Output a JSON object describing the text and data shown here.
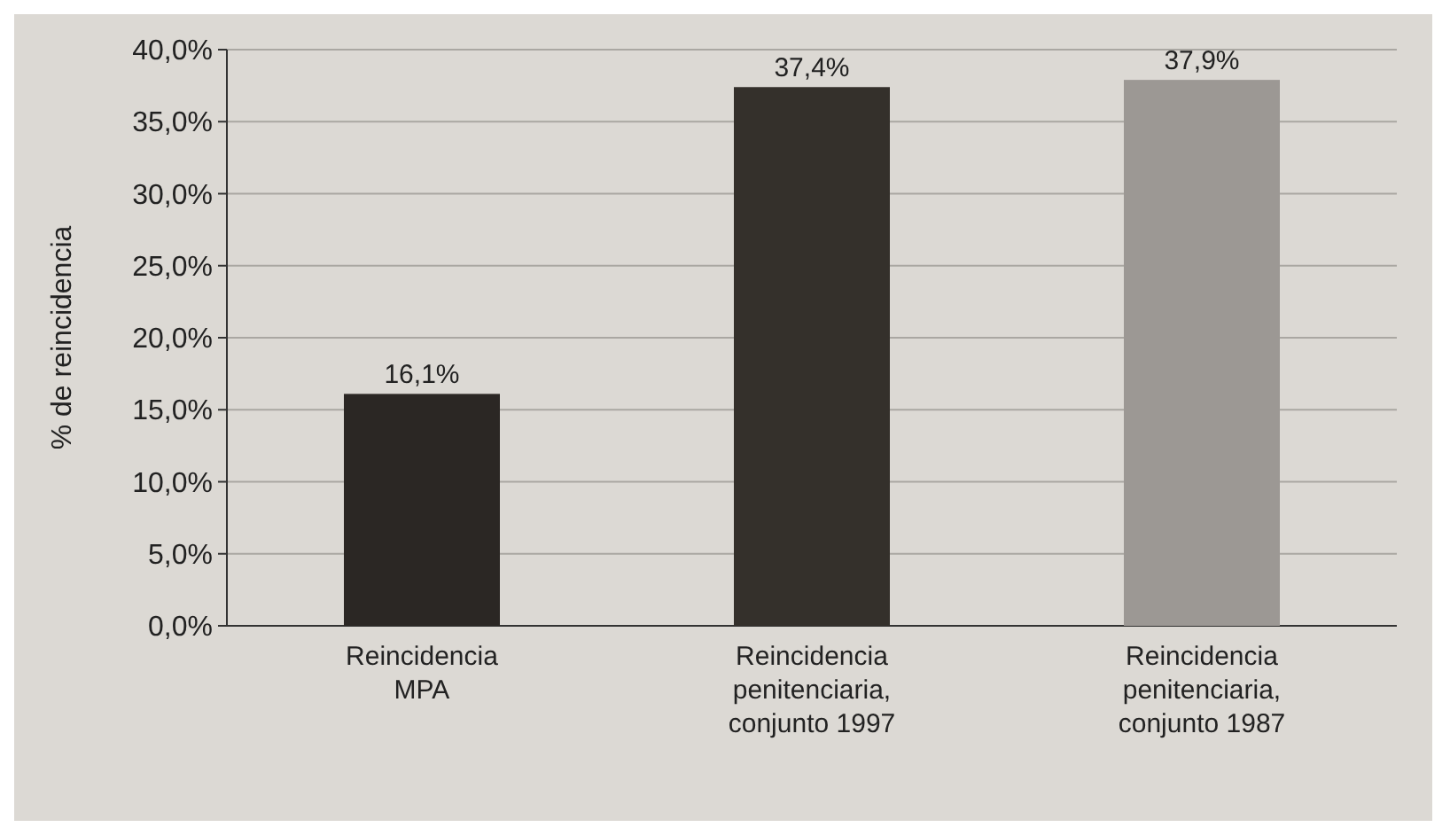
{
  "chart_data": {
    "type": "bar",
    "ylabel": "% de reincidencia",
    "categories": [
      "Reincidencia MPA",
      "Reincidencia penitenciaria, conjunto 1997",
      "Reincidencia penitenciaria, conjunto 1987"
    ],
    "values": [
      16.1,
      37.4,
      37.9
    ],
    "colors": [
      "#2b2724",
      "#34302b",
      "#9c9894"
    ],
    "value_labels": [
      "16,1%",
      "37,4%",
      "37,9%"
    ],
    "ylim": [
      0,
      40
    ],
    "yticks": [
      {
        "value": 0,
        "label": "0,0%"
      },
      {
        "value": 5,
        "label": "5,0%"
      },
      {
        "value": 10,
        "label": "10,0%"
      },
      {
        "value": 15,
        "label": "15,0%"
      },
      {
        "value": 20,
        "label": "20,0%"
      },
      {
        "value": 25,
        "label": "25,0%"
      },
      {
        "value": 30,
        "label": "30,0%"
      },
      {
        "value": 35,
        "label": "35,0%"
      },
      {
        "value": 40,
        "label": "40,0%"
      }
    ],
    "grid": "y"
  }
}
